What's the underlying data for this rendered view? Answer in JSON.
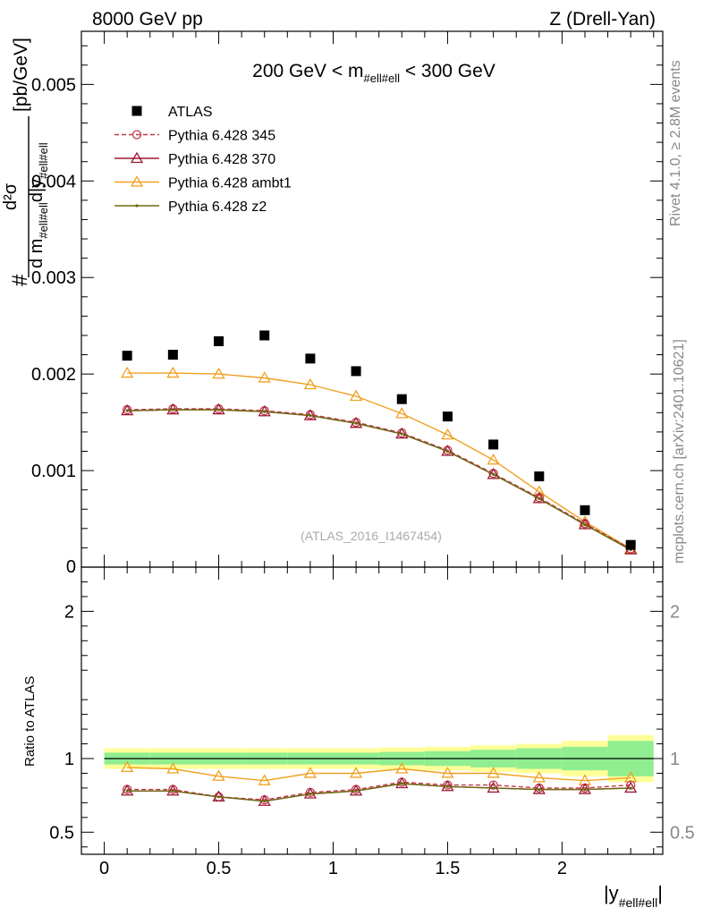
{
  "header": {
    "left": "8000 GeV pp",
    "right": "Z (Drell-Yan)"
  },
  "side_labels": {
    "rivet": "Rivet 4.1.0, ≥ 2.8M events",
    "mcplots": "mcplots.cern.ch [arXiv:2401.10621]"
  },
  "chart_data": [
    {
      "type": "scatter",
      "panel": "main",
      "title": "200 GeV < m_{#ell#ell} < 300 GeV",
      "title_parts": {
        "pre": "200 GeV < m",
        "sub": "#ell#ell",
        "post": " < 300 GeV"
      },
      "ylabel_parts": {
        "hash": "#",
        "num": "d²σ",
        "den_pre": "d m",
        "den_sub1": "#ell#ell",
        "den_mid": "d|y",
        "den_sub2": "#ell#ell",
        "unit": "[pb/GeV]"
      },
      "watermark": "(ATLAS_2016_I1467454)",
      "xlim": [
        -0.1,
        2.44
      ],
      "ylim": [
        0,
        0.00555
      ],
      "yticks": [
        {
          "v": 0.001,
          "label": "0.001"
        },
        {
          "v": 0.002,
          "label": "0.002"
        },
        {
          "v": 0.003,
          "label": "0.003"
        },
        {
          "v": 0.004,
          "label": "0.004"
        },
        {
          "v": 0.005,
          "label": "0.005"
        },
        {
          "v": 0.0,
          "label": "0"
        }
      ],
      "x": [
        0.1,
        0.3,
        0.5,
        0.7,
        0.9,
        1.1,
        1.3,
        1.5,
        1.7,
        1.9,
        2.1,
        2.3
      ],
      "series": [
        {
          "name": "ATLAS",
          "marker": "square",
          "color": "#000000",
          "line": "none",
          "values": [
            0.00219,
            0.0022,
            0.00234,
            0.0024,
            0.00216,
            0.00203,
            0.00174,
            0.00156,
            0.00127,
            0.00094,
            0.00059,
            0.00023
          ]
        },
        {
          "name": "Pythia 6.428 345",
          "marker": "circle",
          "color": "#c0394b",
          "line": "dashed",
          "values": [
            0.00163,
            0.00164,
            0.00164,
            0.00162,
            0.00158,
            0.0015,
            0.00139,
            0.00121,
            0.00097,
            0.00072,
            0.00045,
            0.00019
          ]
        },
        {
          "name": "Pythia 6.428 370",
          "marker": "triangle",
          "color": "#9b1a33",
          "line": "solid",
          "values": [
            0.00162,
            0.00163,
            0.00163,
            0.00161,
            0.00157,
            0.00149,
            0.00138,
            0.0012,
            0.00096,
            0.00071,
            0.00044,
            0.00018
          ]
        },
        {
          "name": "Pythia 6.428 ambt1",
          "marker": "triangle",
          "color": "#f0a020",
          "line": "solid",
          "values": [
            0.00201,
            0.00201,
            0.002,
            0.00196,
            0.00189,
            0.00177,
            0.00159,
            0.00137,
            0.00111,
            0.00078,
            0.00047,
            0.00019
          ]
        },
        {
          "name": "Pythia 6.428 z2",
          "marker": "dot",
          "color": "#6b6b10",
          "line": "solid",
          "values": [
            0.00162,
            0.00163,
            0.00163,
            0.00161,
            0.00157,
            0.00149,
            0.00138,
            0.0012,
            0.00096,
            0.00071,
            0.00044,
            0.00018
          ]
        }
      ]
    },
    {
      "type": "line",
      "panel": "ratio",
      "ylabel": "Ratio to ATLAS",
      "xlabel_parts": {
        "pre": "|y",
        "sub": "#ell#ell",
        "post": "|"
      },
      "xlim": [
        -0.1,
        2.44
      ],
      "ylim": [
        0.35,
        2.3
      ],
      "xticks": [
        {
          "v": 0,
          "label": "0"
        },
        {
          "v": 0.5,
          "label": "0.5"
        },
        {
          "v": 1,
          "label": "1"
        },
        {
          "v": 1.5,
          "label": "1.5"
        },
        {
          "v": 2,
          "label": "2"
        }
      ],
      "yticks": [
        {
          "v": 0.5,
          "label": "0.5"
        },
        {
          "v": 1,
          "label": "1"
        },
        {
          "v": 2,
          "label": "2"
        }
      ],
      "bin_edges": [
        0.0,
        0.2,
        0.4,
        0.6,
        0.8,
        1.0,
        1.2,
        1.4,
        1.6,
        1.8,
        2.0,
        2.2,
        2.4
      ],
      "band_inner": [
        0.04,
        0.04,
        0.04,
        0.04,
        0.04,
        0.04,
        0.045,
        0.05,
        0.06,
        0.07,
        0.08,
        0.12
      ],
      "band_outer": [
        0.07,
        0.07,
        0.07,
        0.07,
        0.07,
        0.07,
        0.075,
        0.08,
        0.09,
        0.1,
        0.12,
        0.16
      ],
      "band_colors": {
        "inner": "#90ee90",
        "outer": "#ffff99"
      },
      "x": [
        0.1,
        0.3,
        0.5,
        0.7,
        0.9,
        1.1,
        1.3,
        1.5,
        1.7,
        1.9,
        2.1,
        2.3
      ],
      "series": [
        {
          "name": "Pythia 6.428 345",
          "marker": "circle",
          "color": "#c0394b",
          "line": "dashed",
          "values": [
            0.79,
            0.79,
            0.74,
            0.72,
            0.77,
            0.79,
            0.84,
            0.82,
            0.82,
            0.8,
            0.8,
            0.82
          ]
        },
        {
          "name": "Pythia 6.428 370",
          "marker": "triangle",
          "color": "#9b1a33",
          "line": "solid",
          "values": [
            0.78,
            0.78,
            0.74,
            0.71,
            0.76,
            0.78,
            0.83,
            0.81,
            0.8,
            0.79,
            0.79,
            0.8
          ]
        },
        {
          "name": "Pythia 6.428 ambt1",
          "marker": "triangle",
          "color": "#f0a020",
          "line": "solid",
          "values": [
            0.94,
            0.93,
            0.88,
            0.85,
            0.9,
            0.9,
            0.93,
            0.9,
            0.9,
            0.87,
            0.85,
            0.87
          ]
        },
        {
          "name": "Pythia 6.428 z2",
          "marker": "dot",
          "color": "#6b6b10",
          "line": "solid",
          "values": [
            0.78,
            0.78,
            0.74,
            0.71,
            0.76,
            0.78,
            0.83,
            0.81,
            0.8,
            0.79,
            0.79,
            0.8
          ]
        }
      ]
    }
  ]
}
